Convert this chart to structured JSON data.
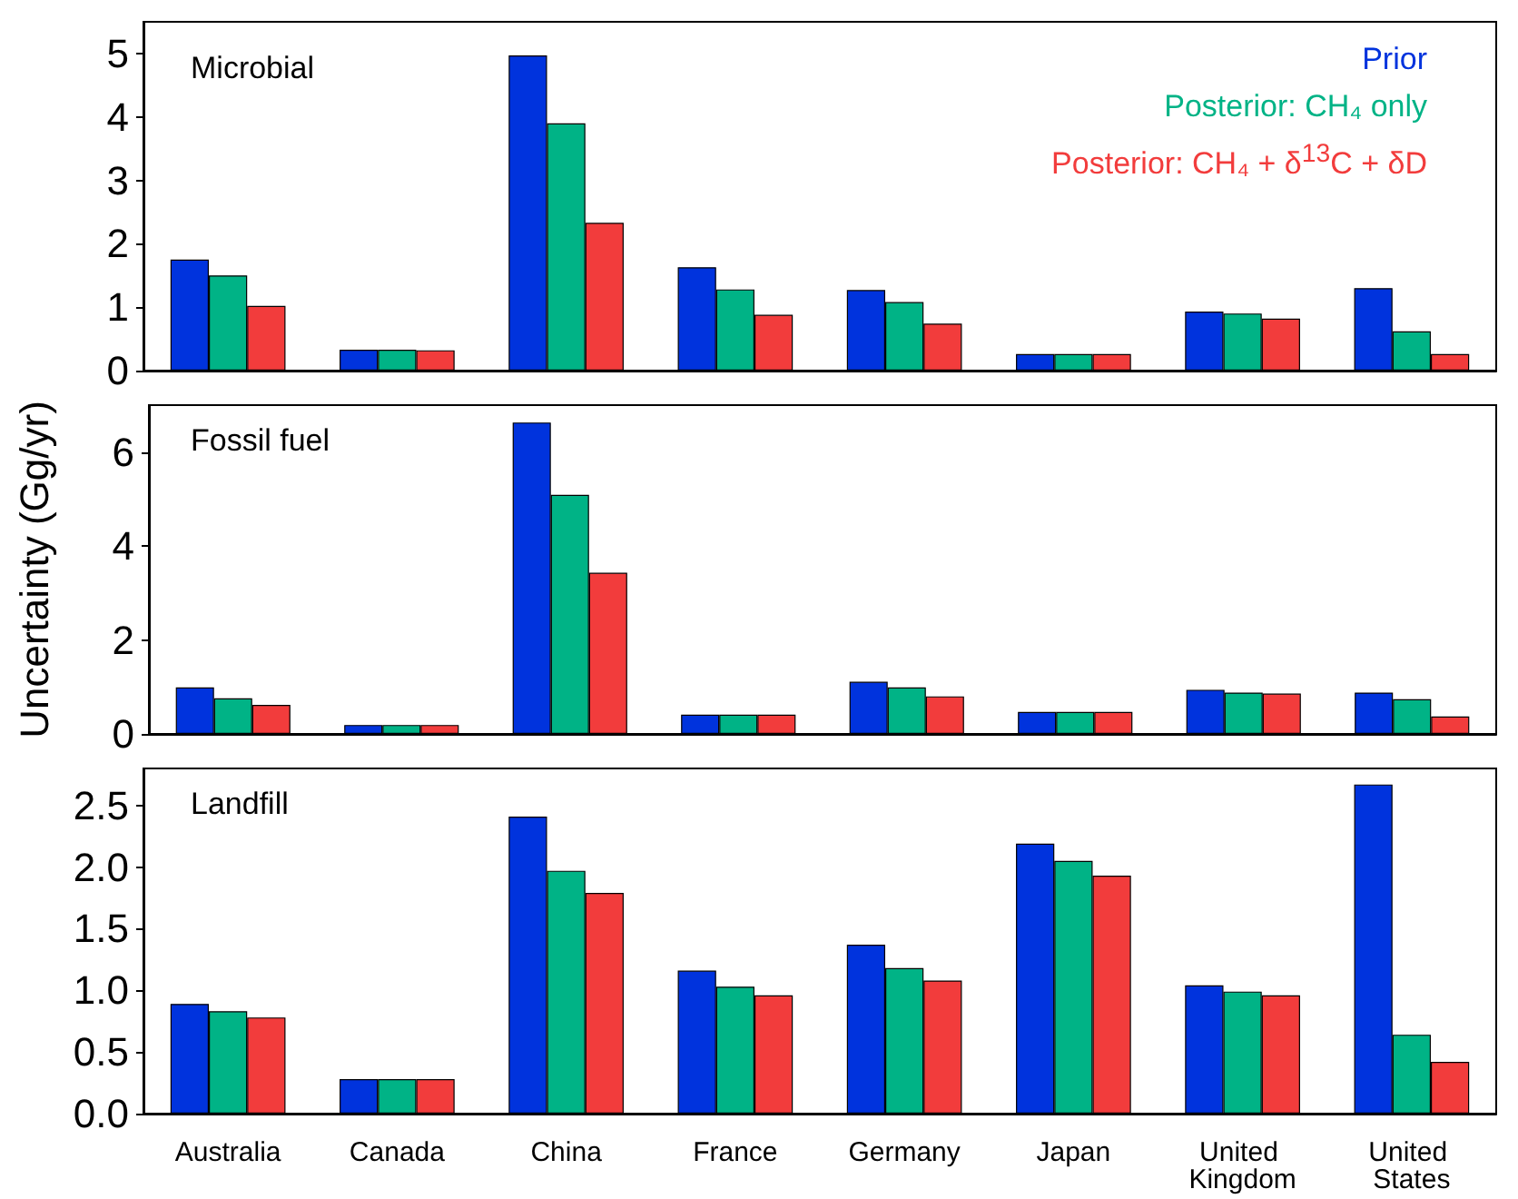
{
  "chart_data": [
    {
      "type": "bar",
      "title": "Microbial",
      "categories": [
        "Australia",
        "Canada",
        "China",
        "France",
        "Germany",
        "Japan",
        "United Kingdom",
        "United States"
      ],
      "series": [
        {
          "name": "Prior",
          "color": "#0033dd",
          "values": [
            1.75,
            0.33,
            4.97,
            1.63,
            1.27,
            0.26,
            0.93,
            1.3
          ]
        },
        {
          "name": "Posterior: CH₄ only",
          "color": "#00b386",
          "values": [
            1.5,
            0.33,
            3.9,
            1.28,
            1.08,
            0.26,
            0.9,
            0.62
          ]
        },
        {
          "name": "Posterior: CH₄ + δ$^{13}$C + δD",
          "color": "#f23c3c",
          "values": [
            1.02,
            0.32,
            2.33,
            0.88,
            0.74,
            0.26,
            0.82,
            0.26
          ]
        }
      ],
      "ylim": [
        0,
        5.5
      ],
      "yticks": [
        0,
        1,
        2,
        3,
        4,
        5
      ],
      "legend": "top right",
      "tick_labels": "y"
    },
    {
      "type": "bar",
      "title": "Fossil fuel",
      "ylabel": "Uncertainty (Gg/yr)",
      "categories": [
        "Australia",
        "Canada",
        "China",
        "France",
        "Germany",
        "Japan",
        "United Kingdom",
        "United States"
      ],
      "series": [
        {
          "color": "#0033dd",
          "values": [
            0.99,
            0.19,
            6.63,
            0.41,
            1.11,
            0.47,
            0.94,
            0.88
          ]
        },
        {
          "color": "#00b386",
          "values": [
            0.76,
            0.19,
            5.09,
            0.41,
            0.99,
            0.47,
            0.88,
            0.74
          ]
        },
        {
          "color": "#f23c3c",
          "values": [
            0.62,
            0.19,
            3.43,
            0.41,
            0.8,
            0.47,
            0.86,
            0.37
          ]
        }
      ],
      "ylim": [
        0,
        7
      ],
      "yticks": [
        0,
        2,
        4,
        6
      ],
      "tick_labels": "y"
    },
    {
      "type": "bar",
      "title": "Landfill",
      "categories": [
        "Australia",
        "Canada",
        "China",
        "France",
        "Germany",
        "Japan",
        "United Kingdom",
        "United States"
      ],
      "series": [
        {
          "color": "#0033dd",
          "values": [
            0.89,
            0.28,
            2.41,
            1.16,
            1.37,
            2.19,
            1.04,
            2.67
          ]
        },
        {
          "color": "#00b386",
          "values": [
            0.83,
            0.28,
            1.97,
            1.03,
            1.18,
            2.05,
            0.99,
            0.64
          ]
        },
        {
          "color": "#f23c3c",
          "values": [
            0.78,
            0.28,
            1.79,
            0.96,
            1.08,
            1.93,
            0.96,
            0.42
          ]
        }
      ],
      "ylim": [
        0,
        2.8
      ],
      "yticks": [
        {
          "value": 0,
          "label": "0.0"
        },
        {
          "value": 0.5,
          "label": "0.5"
        },
        {
          "value": 1,
          "label": "1.0"
        },
        {
          "value": 1.5,
          "label": "1.5"
        },
        {
          "value": 2,
          "label": "2.0"
        },
        {
          "value": 2.5,
          "label": "2.5"
        }
      ]
    }
  ]
}
